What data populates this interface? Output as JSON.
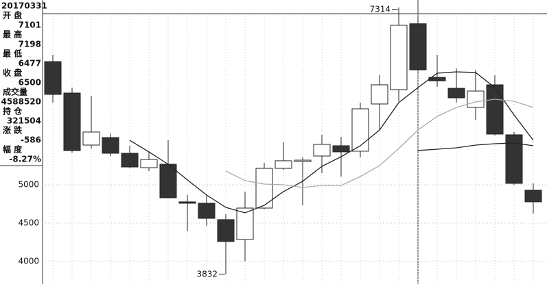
{
  "panel": {
    "date": "20170331",
    "fields": [
      {
        "label": "开 盘",
        "value": "7101"
      },
      {
        "label": "最 高",
        "value": "7198"
      },
      {
        "label": "最 低",
        "value": "6477"
      },
      {
        "label": "收 盘",
        "value": "6500"
      },
      {
        "label": "成交量",
        "value": "4588520"
      },
      {
        "label": "持 仓",
        "value": "321504"
      },
      {
        "label": "涨 跌",
        "value": "-586"
      },
      {
        "label": "幅 度",
        "value": "-8.27%"
      }
    ]
  },
  "chart_data": {
    "type": "candlestick",
    "open": [
      6607,
      6197,
      5518,
      5616,
      5411,
      5223,
      5268,
      4777,
      4759,
      4545,
      4286,
      4696,
      5214,
      5304,
      5375,
      5509,
      5438,
      6054,
      6241,
      7101,
      6402,
      6259,
      6009,
      6304,
      5652,
      4929
    ],
    "high": [
      6697,
      6268,
      6161,
      5670,
      5509,
      5429,
      5580,
      4866,
      4866,
      4616,
      4911,
      5286,
      5554,
      5357,
      5652,
      5625,
      6072,
      6429,
      7314,
      7198,
      6697,
      6518,
      6500,
      6429,
      5688,
      5018
    ],
    "low": [
      6071,
      5420,
      5473,
      5375,
      5214,
      5179,
      4821,
      4393,
      4464,
      3832,
      4000,
      4679,
      5196,
      4732,
      5152,
      5107,
      5357,
      5714,
      6089,
      6477,
      6277,
      6072,
      5848,
      5643,
      5000,
      4625
    ],
    "close": [
      6179,
      5446,
      5688,
      5411,
      5232,
      5330,
      4830,
      4759,
      4562,
      4259,
      4696,
      5214,
      5313,
      5321,
      5527,
      5429,
      5991,
      6304,
      7081,
      6500,
      6357,
      6134,
      6223,
      5661,
      5018,
      4777
    ],
    "up_color": "#ffffff",
    "down_color": "#333333",
    "series": [
      {
        "color": "#222222",
        "values": [
          null,
          null,
          null,
          null,
          5580,
          5429,
          5268,
          5063,
          4866,
          4705,
          4634,
          4732,
          4911,
          5045,
          5241,
          5366,
          5509,
          5714,
          6072,
          6268,
          6456,
          6473,
          6465,
          6268,
          5911,
          5580
        ]
      },
      {
        "color": "#aaaaaa",
        "values": [
          null,
          null,
          null,
          null,
          null,
          null,
          null,
          null,
          null,
          5179,
          5054,
          5009,
          5000,
          4964,
          4991,
          4991,
          5107,
          5250,
          5473,
          5714,
          5893,
          6009,
          6081,
          6116,
          6089,
          6009
        ]
      },
      {
        "color": "#222222",
        "values": [
          null,
          null,
          null,
          null,
          null,
          null,
          null,
          null,
          null,
          null,
          null,
          null,
          null,
          null,
          null,
          null,
          null,
          null,
          null,
          5447,
          5464,
          5482,
          5518,
          5536,
          5545,
          5509
        ]
      }
    ],
    "ylim": [
      3705,
      7411
    ],
    "yticks": [
      4000,
      4500,
      5000
    ],
    "grid": true
  }
}
